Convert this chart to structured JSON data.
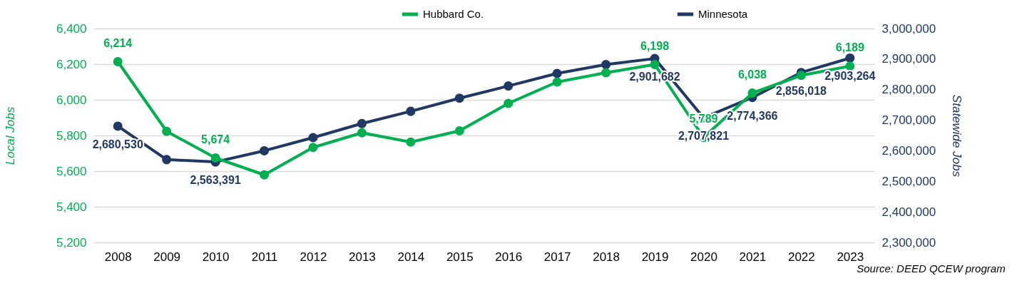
{
  "chart_data": {
    "type": "line",
    "ylabel": "Local Jobs",
    "y2label": "Statewide Jobs",
    "categories": [
      "2008",
      "2009",
      "2010",
      "2011",
      "2012",
      "2013",
      "2014",
      "2015",
      "2016",
      "2017",
      "2018",
      "2019",
      "2020",
      "2021",
      "2022",
      "2023"
    ],
    "series": [
      {
        "name": "Hubbard Co.",
        "color": "#00b050",
        "values": [
          6214,
          5823,
          5674,
          5579,
          5733,
          5815,
          5763,
          5826,
          5980,
          6100,
          6152,
          6198,
          5789,
          6038,
          6137,
          6189
        ],
        "value_labels": [
          "6,214",
          null,
          "5,674",
          null,
          null,
          null,
          null,
          null,
          null,
          null,
          null,
          "6,198",
          "5,789",
          "6,038",
          null,
          "6,189"
        ]
      },
      {
        "name": "Minnesota",
        "color": "#203864",
        "axis": "y2",
        "values": [
          2680530,
          2571000,
          2563391,
          2600000,
          2643000,
          2689000,
          2729000,
          2772000,
          2812000,
          2853000,
          2882000,
          2901682,
          2707821,
          2774366,
          2856018,
          2903264
        ],
        "value_labels": [
          "2,680,530",
          null,
          "2,563,391",
          null,
          null,
          null,
          null,
          null,
          null,
          null,
          null,
          "2,901,682",
          "2,707,821",
          "2,774,366",
          "2,856,018",
          "2,903,264"
        ]
      }
    ],
    "ylim": [
      5200,
      6400
    ],
    "yticks": [
      {
        "value": 5200,
        "label": "5,200"
      },
      {
        "value": 5400,
        "label": "5,400"
      },
      {
        "value": 5600,
        "label": "5,600"
      },
      {
        "value": 5800,
        "label": "5,800"
      },
      {
        "value": 6000,
        "label": "6,000"
      },
      {
        "value": 6200,
        "label": "6,200"
      },
      {
        "value": 6400,
        "label": "6,400"
      }
    ],
    "y2lim": [
      2300000,
      3000000
    ],
    "y2ticks": [
      {
        "value": 2300000,
        "label": "2,300,000"
      },
      {
        "value": 2400000,
        "label": "2,400,000"
      },
      {
        "value": 2500000,
        "label": "2,500,000"
      },
      {
        "value": 2600000,
        "label": "2,600,000"
      },
      {
        "value": 2700000,
        "label": "2,700,000"
      },
      {
        "value": 2800000,
        "label": "2,800,000"
      },
      {
        "value": 2900000,
        "label": "2,900,000"
      },
      {
        "value": 3000000,
        "label": "3,000,000"
      }
    ],
    "grid": "y",
    "legend": "top",
    "marker": "circle",
    "line_style": "solid",
    "annotations": [
      "Source: DEED QCEW program"
    ]
  }
}
